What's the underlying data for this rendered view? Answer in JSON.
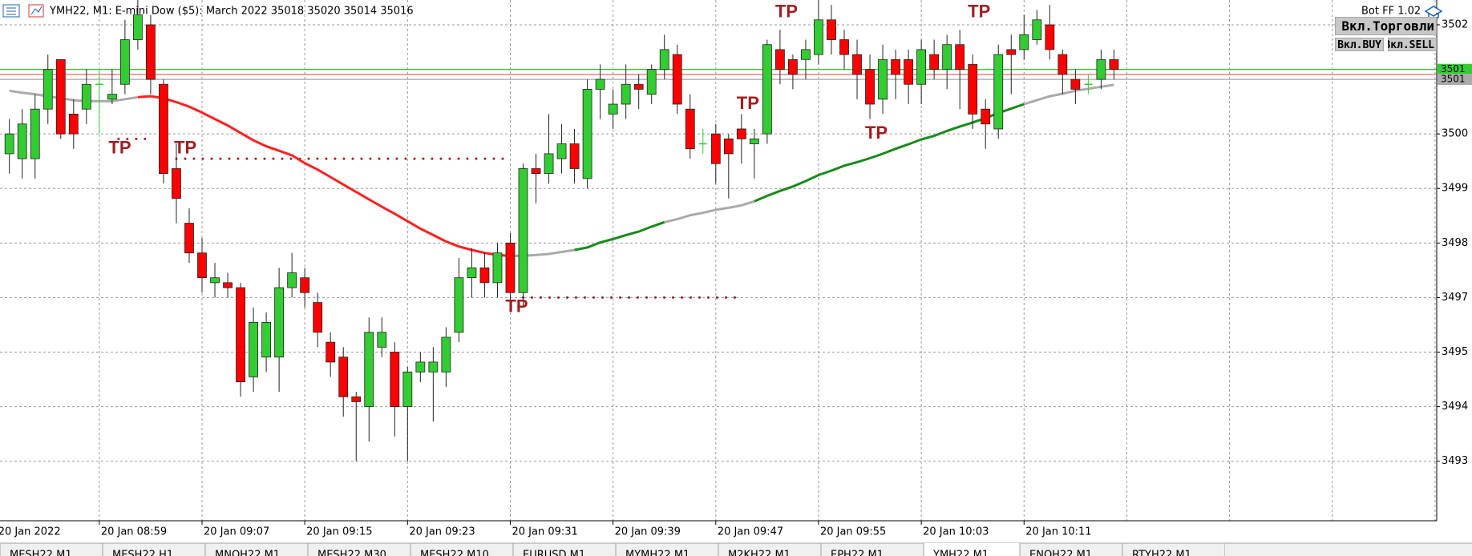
{
  "header": {
    "title": "YMH22, M1:  E-mini Dow ($5): March 2022  35018 35020 35014 35016",
    "bot": "Bot FF 1.02",
    "buttons": [
      "Вкл.Торговли",
      "Вкл.BUY",
      "Вкл.SELL"
    ]
  },
  "tabs": {
    "items": [
      "MESH22,M1",
      "MESH22,H1",
      "MNQH22,M1",
      "MESH22,M30",
      "MESH22,M10",
      "EURUSD,M1",
      "MYMH22,M1",
      "M2KH22,M1",
      "EPH22,M1",
      "YMH22,M1",
      "ENQH22,M1",
      "RTYH22,M1"
    ],
    "active": "YMH22,M1"
  },
  "chart_data": {
    "type": "candlestick",
    "first_date_label": "20 Jan 2022",
    "categories": [
      null,
      null,
      null,
      null,
      null,
      null,
      null,
      "20 Jan 08:59",
      null,
      null,
      null,
      null,
      null,
      null,
      null,
      "20 Jan 09:07",
      null,
      null,
      null,
      null,
      null,
      null,
      null,
      "20 Jan 09:15",
      null,
      null,
      null,
      null,
      null,
      null,
      null,
      "20 Jan 09:23",
      null,
      null,
      null,
      null,
      null,
      null,
      null,
      "20 Jan 09:31",
      null,
      null,
      null,
      null,
      null,
      null,
      null,
      "20 Jan 09:39",
      null,
      null,
      null,
      null,
      null,
      null,
      null,
      "20 Jan 09:47",
      null,
      null,
      null,
      null,
      null,
      null,
      null,
      "20 Jan 09:55",
      null,
      null,
      null,
      null,
      null,
      null,
      null,
      "20 Jan 10:03",
      null,
      null,
      null,
      null,
      null,
      null,
      null,
      "20 Jan 10:11",
      null,
      null,
      null,
      null,
      null,
      null,
      null
    ],
    "open": [
      34999,
      34998,
      34998,
      35008,
      35018,
      35007,
      35008,
      35013,
      35010,
      35013,
      35022,
      35025,
      35013,
      34996,
      34985,
      34979,
      34973,
      34973,
      34972,
      34954,
      34958,
      34958,
      34972,
      34974,
      34969,
      34961,
      34958,
      34950,
      34948,
      34960,
      34959,
      34948,
      34955,
      34955,
      34955,
      34963,
      34974,
      34976,
      34973,
      34981,
      34971,
      34996,
      34995,
      34998,
      35001,
      34994,
      35012,
      35007,
      35009,
      35013,
      35011,
      35016,
      35019,
      35008,
      35001,
      35003,
      35002,
      35004,
      35001,
      35003,
      35020,
      35018,
      35018,
      35019,
      35026,
      35022,
      35019,
      35016,
      35010,
      35018,
      35018,
      35013,
      35019,
      35016,
      35021,
      35017,
      35008,
      35004,
      35020,
      35020,
      35022,
      35025,
      35019,
      35014,
      35013,
      35014,
      35018
    ],
    "high": [
      35006,
      35008,
      35011,
      35019,
      35018,
      35010,
      35016,
      35016,
      35016,
      35026,
      35030,
      35027,
      35014,
      35001,
      34988,
      34982,
      34977,
      34975,
      34973,
      34968,
      34967,
      34976,
      34979,
      34976,
      34971,
      34963,
      34960,
      34951,
      34966,
      34966,
      34961,
      34956,
      34959,
      34960,
      34964,
      34978,
      34980,
      34979,
      34981,
      34983,
      34997,
      34999,
      35007,
      35005,
      35004,
      35014,
      35017,
      35012,
      35017,
      35015,
      35017,
      35023,
      35021,
      35011,
      35004,
      35005,
      35003,
      35007,
      35004,
      35022,
      35024,
      35019,
      35022,
      35030,
      35029,
      35024,
      35022,
      35019,
      35021,
      35020,
      35020,
      35022,
      35022,
      35023,
      35024,
      35019,
      35010,
      35021,
      35023,
      35027,
      35028,
      35029,
      35020,
      35016,
      35015,
      35020,
      35020
    ],
    "low": [
      34995,
      34994,
      34994,
      35005,
      35002,
      35000,
      35005,
      35003,
      35009,
      35011,
      35020,
      35011,
      34993,
      34985,
      34977,
      34971,
      34970,
      34970,
      34950,
      34951,
      34955,
      34951,
      34970,
      34968,
      34960,
      34954,
      34946,
      34937,
      34941,
      34958,
      34942,
      34937,
      34953,
      34945,
      34952,
      34961,
      34970,
      34970,
      34970,
      34969,
      34968,
      34989,
      34993,
      34995,
      34993,
      34992,
      35006,
      35004,
      35006,
      35008,
      35009,
      35014,
      35007,
      34998,
      34999,
      34993,
      34990,
      34997,
      34994,
      35001,
      35013,
      35012,
      35014,
      35017,
      35019,
      35016,
      35010,
      35006,
      35007,
      35010,
      35009,
      35009,
      35014,
      35012,
      35008,
      35004,
      35000,
      35002,
      35011,
      35018,
      35021,
      35018,
      35011,
      35009,
      35011,
      35012,
      35014
    ],
    "close": [
      35003,
      35005,
      35008,
      35016,
      35003,
      35003,
      35013,
      35013,
      35011,
      35022,
      35027,
      35014,
      34995,
      34990,
      34979,
      34974,
      34974,
      34972,
      34953,
      34965,
      34965,
      34972,
      34975,
      34971,
      34963,
      34957,
      34950,
      34949,
      34963,
      34963,
      34948,
      34955,
      34957,
      34957,
      34962,
      34974,
      34976,
      34973,
      34979,
      34971,
      34996,
      34995,
      34999,
      35001,
      34996,
      35012,
      35014,
      35009,
      35013,
      35012,
      35016,
      35020,
      35009,
      35000,
      35001,
      34997,
      34999,
      35002,
      35002,
      35021,
      35016,
      35015,
      35020,
      35026,
      35022,
      35019,
      35015,
      35009,
      35018,
      35015,
      35013,
      35020,
      35016,
      35021,
      35016,
      35007,
      35005,
      35019,
      35019,
      35023,
      35026,
      35020,
      35015,
      35012,
      35013,
      35018,
      35016
    ],
    "up_color": "#33cc33",
    "down_color": "#ff0000",
    "ma": {
      "values": [
        35011.7,
        35011.3,
        35011,
        35010.6,
        35010.2,
        35009.8,
        35009.6,
        35009.6,
        35009.6,
        35010,
        35010.4,
        35010.6,
        35010.2,
        35009.4,
        35008.5,
        35007.3,
        35006,
        35004.7,
        35003.2,
        35001.7,
        35000.5,
        34999.6,
        34998.7,
        34997.1,
        34995.8,
        34994.3,
        34992.8,
        34991.3,
        34989.8,
        34988.3,
        34986.9,
        34985.4,
        34983.9,
        34982.6,
        34981.3,
        34980.3,
        34979.6,
        34979,
        34978.6,
        34978.4,
        34978.4,
        34978.6,
        34978.8,
        34979.2,
        34979.6,
        34980.1,
        34981.1,
        34981.8,
        34982.6,
        34983.3,
        34984.3,
        34985.2,
        34985.8,
        34986.6,
        34987.1,
        34987.7,
        34988.1,
        34988.6,
        34989.4,
        34990.5,
        34991.5,
        34992.4,
        34993.5,
        34994.7,
        34995.6,
        34996.6,
        34997.3,
        34998.1,
        34999,
        35000,
        35000.9,
        35001.9,
        35002.6,
        35003.6,
        35004.5,
        35005.3,
        35006.2,
        35007.2,
        35008.1,
        35009,
        35009.8,
        35010.6,
        35011.1,
        35011.7,
        35012.1,
        35012.5,
        35012.9
      ],
      "segments": [
        {
          "start": 0,
          "color": "#aaaaaa"
        },
        {
          "start": 10,
          "color": "#ff2020"
        },
        {
          "start": 39,
          "color": "#aaaaaa"
        },
        {
          "start": 44,
          "color": "#1a8a1a"
        },
        {
          "start": 51,
          "color": "#aaaaaa"
        },
        {
          "start": 58,
          "color": "#1a8a1a"
        },
        {
          "start": 79,
          "color": "#aaaaaa"
        }
      ]
    },
    "levels": [
      {
        "value": 35016,
        "color": "#33cc33",
        "label": "3501"
      },
      {
        "value": 35015,
        "color": "#ff6060"
      },
      {
        "value": 35014,
        "color": "#aaaaaa",
        "label": "3501"
      }
    ],
    "tp_lines": [
      {
        "from": 8.5,
        "to": 11,
        "price": 35002
      },
      {
        "from": 13,
        "to": 39,
        "price": 34998
      },
      {
        "from": 40,
        "to": 57,
        "price": 34970
      }
    ],
    "annotations": [
      {
        "text": "TP",
        "x": 8.6,
        "y": 35000
      },
      {
        "text": "TP",
        "x": 13.7,
        "y": 35000
      },
      {
        "text": "TP",
        "x": 39.5,
        "y": 34968
      },
      {
        "text": "TP",
        "x": 57.5,
        "y": 35009
      },
      {
        "text": "TP",
        "x": 60.5,
        "y": 35027.5
      },
      {
        "text": "TP",
        "x": 67.5,
        "y": 35003
      },
      {
        "text": "TP",
        "x": 75.5,
        "y": 35027.5
      }
    ],
    "ylim": [
      34925,
      35030
    ],
    "yticks": [
      {
        "value": 35025,
        "label": "3502"
      },
      {
        "value": 35003,
        "label": "3500"
      },
      {
        "value": 34992,
        "label": "3499"
      },
      {
        "value": 34981,
        "label": "3498"
      },
      {
        "value": 34970,
        "label": "3497"
      },
      {
        "value": 34959,
        "label": "3495"
      },
      {
        "value": 34948,
        "label": "3494"
      },
      {
        "value": 34937,
        "label": "3493"
      }
    ],
    "grid": true
  }
}
